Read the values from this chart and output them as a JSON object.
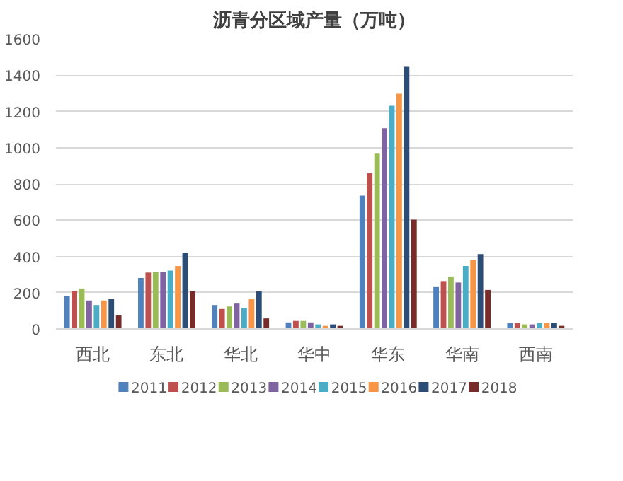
{
  "chart_data": {
    "type": "bar",
    "title": "沥青分区域产量（万吨）",
    "categories": [
      "西北",
      "东北",
      "华北",
      "华中",
      "华东",
      "华南",
      "西南"
    ],
    "series": [
      {
        "name": "2011",
        "color": "#4f81bd",
        "values": [
          182,
          281,
          132,
          36,
          736,
          231,
          33
        ]
      },
      {
        "name": "2012",
        "color": "#c0504d",
        "values": [
          209,
          311,
          110,
          44,
          860,
          264,
          33
        ]
      },
      {
        "name": "2013",
        "color": "#9bbb59",
        "values": [
          223,
          314,
          124,
          44,
          967,
          289,
          25
        ]
      },
      {
        "name": "2014",
        "color": "#8064a2",
        "values": [
          157,
          314,
          140,
          36,
          1107,
          256,
          25
        ]
      },
      {
        "name": "2015",
        "color": "#4bacc6",
        "values": [
          132,
          322,
          116,
          25,
          1231,
          347,
          33
        ]
      },
      {
        "name": "2016",
        "color": "#f79646",
        "values": [
          157,
          347,
          165,
          17,
          1298,
          380,
          33
        ]
      },
      {
        "name": "2017",
        "color": "#2c4d75",
        "values": [
          165,
          421,
          207,
          25,
          1446,
          413,
          33
        ]
      },
      {
        "name": "2018",
        "color": "#772c2a",
        "values": [
          74,
          207,
          58,
          17,
          603,
          215,
          17
        ]
      }
    ],
    "ylim": [
      0,
      1600
    ],
    "yticks": [
      0,
      200,
      400,
      600,
      800,
      1000,
      1200,
      1400,
      1600
    ],
    "grid": "y",
    "legend": "bottom"
  }
}
